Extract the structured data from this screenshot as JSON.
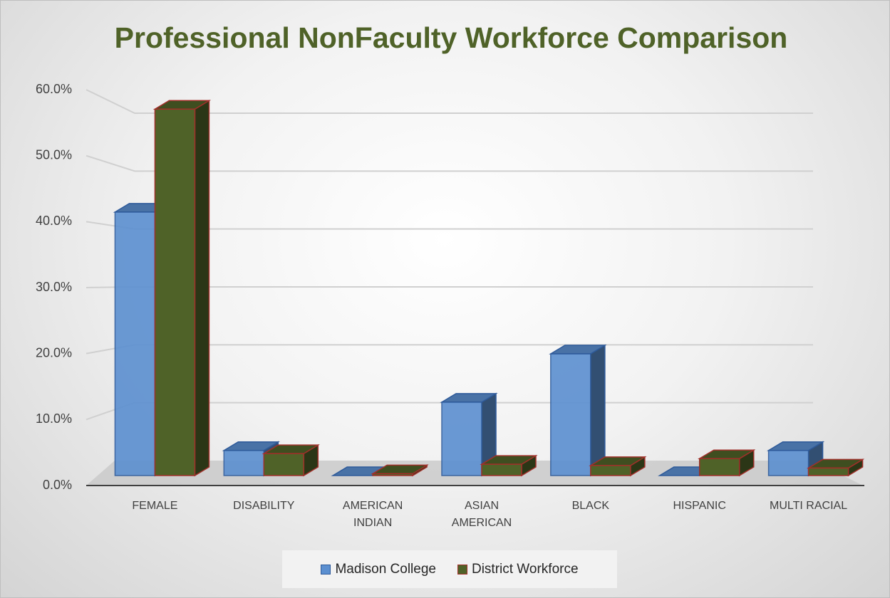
{
  "chart_data": {
    "type": "bar3d",
    "title": "Professional NonFaculty Workforce Comparison",
    "categories": [
      "FEMALE",
      "DISABILITY",
      "AMERICAN INDIAN",
      "ASIAN AMERICAN",
      "BLACK",
      "HISPANIC",
      "MULTI RACIAL"
    ],
    "series": [
      {
        "name": "Madison College",
        "color": "#5b8fd0",
        "values": [
          42,
          4.0,
          0,
          11.7,
          19.4,
          0,
          4.0
        ]
      },
      {
        "name": "District Workforce",
        "color": "#4f6228",
        "values": [
          58.4,
          3.5,
          0.3,
          1.8,
          1.6,
          2.7,
          1.2
        ]
      }
    ],
    "ylim": [
      0,
      60
    ],
    "yticks": [
      {
        "value": 0,
        "label": "0.0%"
      },
      {
        "value": 10,
        "label": "10.0%"
      },
      {
        "value": 20,
        "label": "20.0%"
      },
      {
        "value": 30,
        "label": "30.0%"
      },
      {
        "value": 40,
        "label": "40.0%"
      },
      {
        "value": 50,
        "label": "50.0%"
      },
      {
        "value": 60,
        "label": "60.0%"
      }
    ],
    "grid": true,
    "legend": "bottom"
  }
}
